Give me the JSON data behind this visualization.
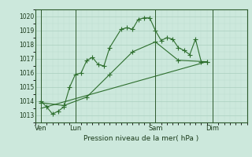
{
  "bg_color": "#cce8dc",
  "plot_bg_color": "#cce8dc",
  "grid_major_color": "#aacfbe",
  "grid_minor_color": "#bddece",
  "line_color": "#2d6e2d",
  "title": "Pression niveau de la mer( hPa )",
  "ylim": [
    1012.5,
    1020.5
  ],
  "yticks": [
    1013,
    1014,
    1015,
    1016,
    1017,
    1018,
    1019,
    1020
  ],
  "xtick_labels": [
    "Ven",
    "Lun",
    "Sam",
    "Dim"
  ],
  "xtick_positions": [
    0,
    3,
    10,
    15
  ],
  "xlim": [
    -0.5,
    18
  ],
  "series1_x": [
    0,
    0.5,
    1,
    1.5,
    2,
    2.5,
    3,
    3.5,
    4,
    4.5,
    5,
    5.5,
    6,
    7,
    7.5,
    8,
    8.5,
    9,
    9.5,
    10,
    10.5,
    11,
    11.5,
    12,
    12.5,
    13,
    13.5,
    14,
    14.5
  ],
  "series1_y": [
    1014.0,
    1013.6,
    1013.1,
    1013.3,
    1013.6,
    1015.0,
    1015.9,
    1016.0,
    1016.9,
    1017.1,
    1016.6,
    1016.5,
    1017.8,
    1019.1,
    1019.2,
    1019.1,
    1019.8,
    1019.9,
    1019.9,
    1019.0,
    1018.3,
    1018.5,
    1018.4,
    1017.8,
    1017.6,
    1017.3,
    1018.4,
    1016.8,
    1016.8
  ],
  "series2_x": [
    0,
    2,
    4,
    6,
    8,
    10,
    12,
    14.5
  ],
  "series2_y": [
    1013.9,
    1013.7,
    1014.3,
    1015.9,
    1017.5,
    1018.2,
    1016.9,
    1016.8
  ],
  "series3_x": [
    0,
    14.5
  ],
  "series3_y": [
    1013.5,
    1016.8
  ],
  "vline_x": [
    0,
    3,
    10,
    15
  ],
  "vline_color": "#2d5a2d",
  "marker": "+",
  "markersize": 4
}
